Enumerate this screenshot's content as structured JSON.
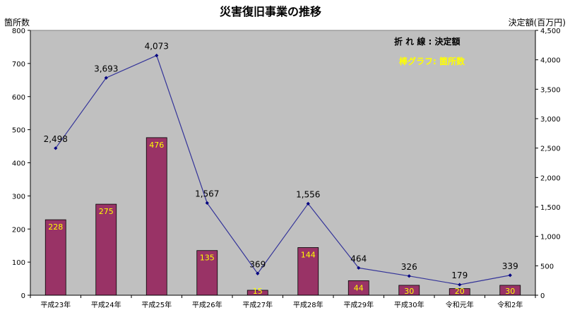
{
  "chart_data": {
    "type": "bar+line",
    "title": "災害復旧事業の推移",
    "left_axis_title": "箇所数",
    "right_axis_title": "決定額(百万円)",
    "categories": [
      "平成23年",
      "平成24年",
      "平成25年",
      "平成26年",
      "平成27年",
      "平成28年",
      "平成29年",
      "平成30年",
      "令和元年",
      "令和2年"
    ],
    "bar_series": {
      "legend": "棒グラフ: 箇所数",
      "values": [
        228,
        275,
        476,
        135,
        15,
        144,
        44,
        30,
        20,
        30
      ],
      "labels": [
        "228",
        "275",
        "476",
        "135",
        "15",
        "144",
        "44",
        "30",
        "20",
        "30"
      ],
      "color": "#993366",
      "label_color": "#ffff00"
    },
    "line_series": {
      "legend": "折 れ 線 : 決定額",
      "values": [
        2498,
        3693,
        4073,
        1567,
        369,
        1556,
        464,
        326,
        179,
        339
      ],
      "labels": [
        "2,498",
        "3,693",
        "4,073",
        "1,567",
        "369",
        "1,556",
        "464",
        "326",
        "179",
        "339"
      ],
      "color": "#333399"
    },
    "left_axis": {
      "min": 0,
      "max": 800,
      "ticks": [
        0,
        100,
        200,
        300,
        400,
        500,
        600,
        700,
        800
      ],
      "tick_labels": [
        "0",
        "100",
        "200",
        "300",
        "400",
        "500",
        "600",
        "700",
        "800"
      ]
    },
    "right_axis": {
      "min": 0,
      "max": 4500,
      "ticks": [
        0,
        500,
        1000,
        1500,
        2000,
        2500,
        3000,
        3500,
        4000,
        4500
      ],
      "tick_labels": [
        "0",
        "500",
        "1,000",
        "1,500",
        "2,000",
        "2,500",
        "3,000",
        "3,500",
        "4,000",
        "4,500"
      ]
    },
    "plot_background": "#c0c0c0",
    "grid": false
  }
}
